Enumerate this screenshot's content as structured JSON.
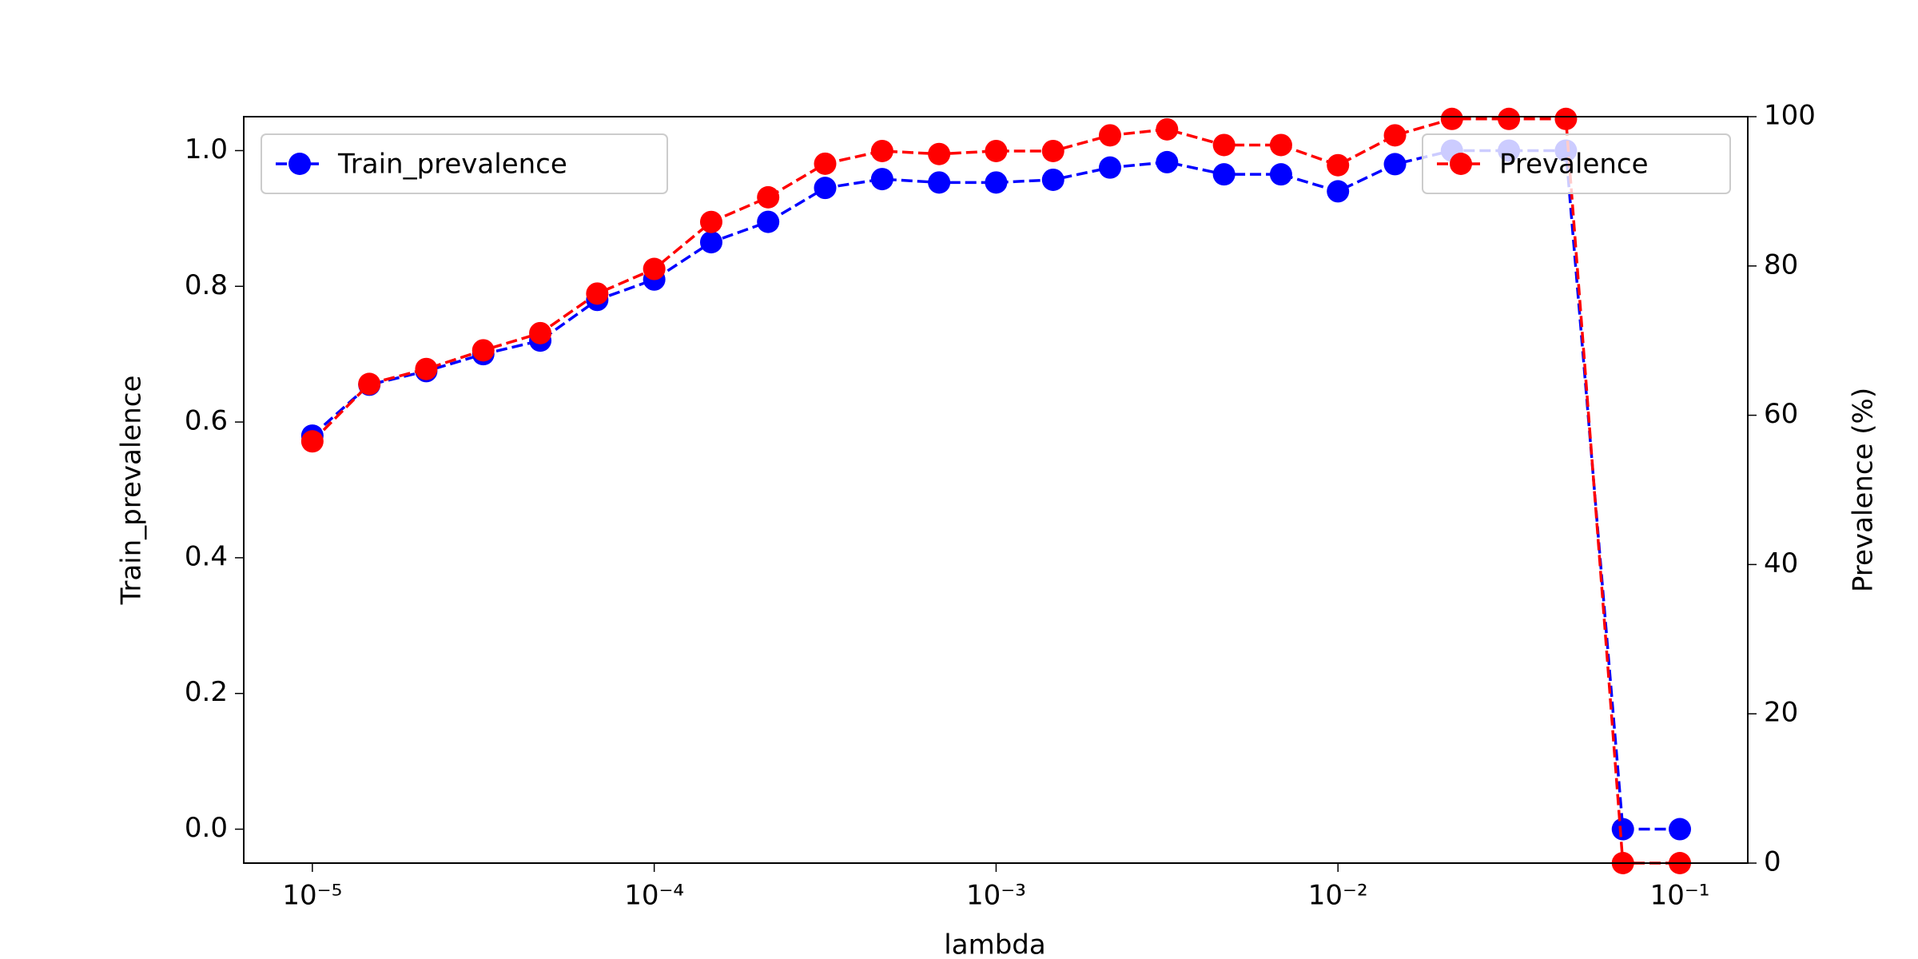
{
  "chart_data": {
    "type": "line",
    "xlabel": "lambda",
    "ylabel": "Train_prevalence",
    "y2label": "Prevalence (%)",
    "xscale": "log",
    "x": [
      1e-05,
      1.468e-05,
      2.154e-05,
      3.162e-05,
      4.642e-05,
      6.813e-05,
      0.0001,
      0.0001468,
      0.0002154,
      0.0003162,
      0.0004642,
      0.0006813,
      0.001,
      0.001468,
      0.002154,
      0.003162,
      0.004642,
      0.006813,
      0.01,
      0.01468,
      0.02154,
      0.03162,
      0.04642,
      0.06813,
      0.1
    ],
    "series": [
      {
        "name": "Train_prevalence",
        "color": "#0000ff",
        "axis": "y",
        "legend_loc": "upper left",
        "values": [
          0.58,
          0.655,
          0.675,
          0.7,
          0.72,
          0.78,
          0.81,
          0.865,
          0.895,
          0.945,
          0.958,
          0.953,
          0.953,
          0.957,
          0.975,
          0.983,
          0.965,
          0.965,
          0.94,
          0.98,
          1.0,
          1.0,
          1.0,
          0.0,
          0.0
        ]
      },
      {
        "name": "Prevalence",
        "color": "#ff0000",
        "axis": "y2",
        "legend_loc": "upper right",
        "values": [
          56.5,
          64.2,
          66.2,
          68.7,
          71,
          76.3,
          79.6,
          85.9,
          89.2,
          93.7,
          95.4,
          95,
          95.4,
          95.4,
          97.5,
          98.3,
          96.2,
          96.2,
          93.5,
          97.5,
          99.7,
          99.7,
          99.7,
          0,
          0
        ]
      }
    ],
    "xlim": [
      6.3e-06,
      0.158
    ],
    "xticks": [
      {
        "value": 1e-05,
        "label": "10⁻⁵"
      },
      {
        "value": 0.0001,
        "label": "10⁻⁴"
      },
      {
        "value": 0.001,
        "label": "10⁻³"
      },
      {
        "value": 0.01,
        "label": "10⁻²"
      },
      {
        "value": 0.1,
        "label": "10⁻¹"
      }
    ],
    "ylim": [
      -0.05,
      1.05
    ],
    "yticks": [
      {
        "value": 0,
        "label": "0.0"
      },
      0.2,
      0.4,
      0.6,
      0.8,
      {
        "value": 1,
        "label": "1.0"
      }
    ],
    "y2lim": [
      0,
      100
    ],
    "y2ticks": [
      0,
      20,
      40,
      60,
      80,
      100
    ],
    "grid": false
  }
}
